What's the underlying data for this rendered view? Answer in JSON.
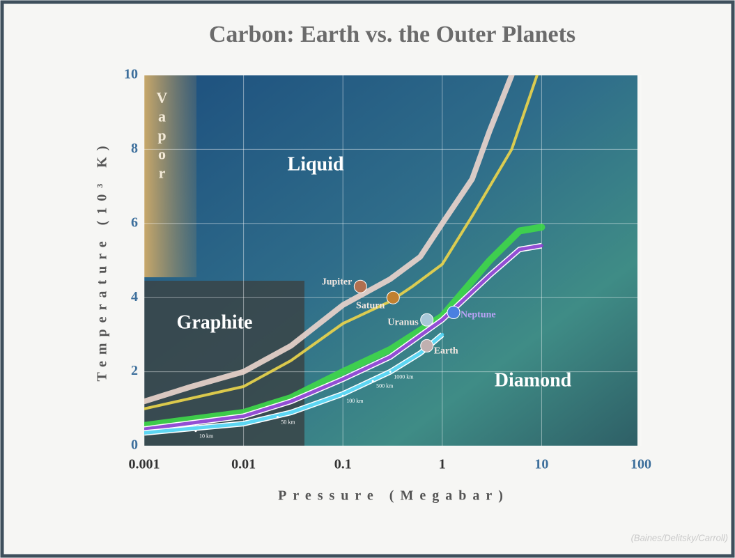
{
  "chart_data": {
    "type": "line",
    "title": "Carbon: Earth vs. the Outer Planets",
    "x_label": "Pressure (Megabar)",
    "y_label": "Temperature (10³ K)",
    "credit": "(Baines/Delitsky/Carroll)",
    "log_x": true,
    "grid": true,
    "xlim": [
      0.001,
      100
    ],
    "ylim": [
      0,
      10
    ],
    "xticks": [
      0.001,
      0.01,
      0.1,
      1,
      10,
      100
    ],
    "yticks": [
      0,
      2,
      4,
      6,
      8,
      10
    ],
    "regions": [
      "Liquid",
      "Graphite",
      "Diamond",
      "Vapor"
    ],
    "series": [
      {
        "name": "Jupiter",
        "color": "#e8d2cb",
        "x": [
          0.001,
          0.003,
          0.01,
          0.03,
          0.1,
          0.3,
          0.6,
          1,
          2,
          3,
          5
        ],
        "values": [
          1.2,
          1.6,
          2.0,
          2.7,
          3.8,
          4.5,
          5.1,
          6.0,
          7.2,
          8.5,
          10
        ]
      },
      {
        "name": "Saturn",
        "color": "#e9d44c",
        "x": [
          0.001,
          0.01,
          0.03,
          0.1,
          0.3,
          0.5,
          1,
          2,
          5,
          9
        ],
        "values": [
          1.0,
          1.6,
          2.3,
          3.3,
          3.9,
          4.3,
          4.9,
          6.2,
          8.0,
          10
        ]
      },
      {
        "name": "Uranus",
        "color": "#3fd64a",
        "x": [
          0.001,
          0.01,
          0.03,
          0.1,
          0.3,
          1,
          3,
          6,
          10
        ],
        "values": [
          0.55,
          0.9,
          1.3,
          2.0,
          2.6,
          3.5,
          5.0,
          5.8,
          5.9
        ]
      },
      {
        "name": "Neptune",
        "color": "#8a3fd0",
        "x": [
          0.001,
          0.01,
          0.03,
          0.1,
          0.3,
          1,
          3,
          6,
          10
        ],
        "values": [
          0.45,
          0.8,
          1.2,
          1.8,
          2.4,
          3.4,
          4.6,
          5.3,
          5.4
        ]
      },
      {
        "name": "Earth",
        "color": "#4fd2f2",
        "x": [
          0.001,
          0.01,
          0.03,
          0.1,
          0.3,
          0.6,
          1
        ],
        "values": [
          0.35,
          0.6,
          0.9,
          1.4,
          2.0,
          2.5,
          3.0
        ]
      }
    ],
    "planets": [
      {
        "name": "Jupiter",
        "x": 0.15,
        "y": 4.3,
        "color": "#b07050"
      },
      {
        "name": "Saturn",
        "x": 0.32,
        "y": 4.0,
        "color": "#c08030"
      },
      {
        "name": "Uranus",
        "x": 0.7,
        "y": 3.4,
        "color": "#a8c8d8"
      },
      {
        "name": "Neptune",
        "x": 1.3,
        "y": 3.6,
        "color": "#4a80e0"
      },
      {
        "name": "Earth",
        "x": 0.7,
        "y": 2.7,
        "color": "#c0b0b0"
      }
    ],
    "depth_labels": [
      {
        "label": "10 km",
        "x": 0.0033,
        "y": 0.4
      },
      {
        "label": "50 km",
        "x": 0.022,
        "y": 0.78
      },
      {
        "label": "100 km",
        "x": 0.1,
        "y": 1.35
      },
      {
        "label": "500 km",
        "x": 0.2,
        "y": 1.75
      },
      {
        "label": "1000 km",
        "x": 0.3,
        "y": 2.0
      }
    ]
  }
}
